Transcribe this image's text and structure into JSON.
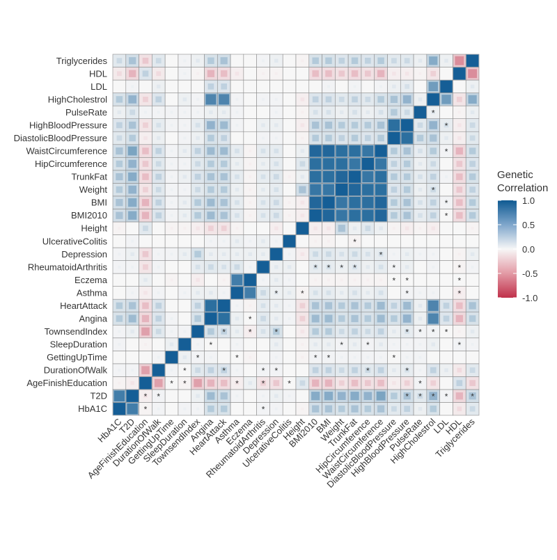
{
  "chart_data": {
    "type": "heatmap",
    "title": "",
    "xlabel": "",
    "ylabel": "",
    "variables": [
      "HbA1C",
      "T2D",
      "AgeFinishEducation",
      "DurationOfWalk",
      "GettingUpTime",
      "SleepDuration",
      "TownsendIndex",
      "Angina",
      "HeartAttack",
      "Asthma",
      "Eczema",
      "RheumatoidArthritis",
      "Depression",
      "UlcerativeColitis",
      "Height",
      "BMI2010",
      "BMI",
      "Weight",
      "TrunkFat",
      "HipCircumference",
      "WaistCircumference",
      "DiastolicBloodPressure",
      "HighBloodPressure",
      "PulseRate",
      "HighCholestrol",
      "LDL",
      "HDL",
      "Triglycerides"
    ],
    "y_order": "bottom-to-top",
    "value_range": [
      -1,
      1
    ],
    "matrix_lower_triangle": [
      [
        1
      ],
      [
        0.8,
        1
      ],
      [
        -0.05,
        -0.1,
        1
      ],
      [
        0.05,
        0.05,
        -0.45,
        1
      ],
      [
        0,
        0,
        0,
        0.05,
        1
      ],
      [
        0.05,
        0,
        -0.05,
        0,
        0.1,
        1
      ],
      [
        0.05,
        0.1,
        -0.45,
        0.2,
        0.05,
        0.05,
        1
      ],
      [
        0.3,
        0.4,
        -0.35,
        0.25,
        0.05,
        0,
        0.3,
        1
      ],
      [
        0.3,
        0.35,
        -0.3,
        0.25,
        0,
        0,
        0.25,
        0.9,
        1
      ],
      [
        0,
        0.05,
        -0.1,
        0.05,
        0,
        0.05,
        0.1,
        0.1,
        0.05,
        1
      ],
      [
        0,
        0,
        0.1,
        0,
        -0.05,
        0,
        -0.1,
        0,
        -0.05,
        0.8,
        1
      ],
      [
        0.05,
        0.05,
        -0.2,
        0.05,
        0,
        0,
        0.15,
        0.2,
        0.15,
        0.2,
        0.05,
        1
      ],
      [
        0.05,
        0.1,
        -0.25,
        0.05,
        0.05,
        0.1,
        0.3,
        0.1,
        0.1,
        0.1,
        0.1,
        0.1,
        1
      ],
      [
        0,
        0.05,
        0,
        0,
        0,
        0,
        0,
        0.05,
        0.05,
        0.1,
        0.05,
        0.1,
        0.05,
        1
      ],
      [
        -0.05,
        0,
        0.2,
        0,
        -0.05,
        -0.05,
        -0.1,
        -0.2,
        -0.2,
        -0.05,
        0,
        0,
        -0.1,
        0,
        1
      ],
      [
        0.35,
        0.5,
        -0.35,
        0.25,
        0.05,
        0.1,
        0.3,
        0.4,
        0.35,
        0.15,
        -0.05,
        0.15,
        0.2,
        -0.05,
        -0.1,
        1
      ],
      [
        0.35,
        0.5,
        -0.35,
        0.25,
        0.05,
        0.1,
        0.3,
        0.4,
        0.35,
        0.15,
        -0.05,
        0.15,
        0.2,
        -0.05,
        -0.1,
        0.95,
        1
      ],
      [
        0.3,
        0.45,
        -0.2,
        0.2,
        0.05,
        0.05,
        0.2,
        0.3,
        0.3,
        0.1,
        -0.05,
        0.1,
        0.15,
        0,
        0.35,
        0.85,
        0.85,
        1
      ],
      [
        0.35,
        0.5,
        -0.3,
        0.25,
        0.05,
        0.1,
        0.25,
        0.35,
        0.35,
        0.15,
        -0.05,
        0.15,
        0.2,
        -0.05,
        0.1,
        0.9,
        0.9,
        0.95,
        1
      ],
      [
        0.3,
        0.45,
        -0.25,
        0.2,
        0.05,
        0.05,
        0.2,
        0.3,
        0.3,
        0.1,
        -0.05,
        0.1,
        0.15,
        0,
        0.2,
        0.9,
        0.9,
        0.9,
        0.85,
        1
      ],
      [
        0.35,
        0.55,
        -0.3,
        0.25,
        0.05,
        0.1,
        0.25,
        0.4,
        0.4,
        0.15,
        -0.05,
        0.15,
        0.15,
        0,
        0.1,
        0.95,
        0.95,
        0.9,
        0.9,
        0.85,
        1
      ],
      [
        0.2,
        0.3,
        -0.1,
        0.1,
        0,
        0.05,
        0.1,
        0.3,
        0.25,
        0,
        0,
        0.05,
        0.05,
        0,
        -0.05,
        0.3,
        0.3,
        0.25,
        0.3,
        0.25,
        0.3,
        1
      ],
      [
        0.25,
        0.35,
        -0.2,
        0.15,
        0.05,
        0.05,
        0.15,
        0.45,
        0.4,
        0.05,
        0,
        0.1,
        0.1,
        0,
        -0.1,
        0.35,
        0.35,
        0.3,
        0.3,
        0.3,
        0.35,
        0.9,
        1
      ],
      [
        0.1,
        0.2,
        0.05,
        0.05,
        0.05,
        0.05,
        0.05,
        0.1,
        0.1,
        0.05,
        0,
        0,
        0.05,
        0,
        -0.05,
        0.15,
        0.15,
        0.1,
        0.15,
        0.1,
        0.15,
        0.3,
        0.2,
        1
      ],
      [
        0.3,
        0.45,
        -0.2,
        0.25,
        0,
        0.1,
        0.05,
        0.75,
        0.75,
        0.05,
        0,
        0.05,
        0.05,
        0,
        -0.1,
        0.25,
        0.25,
        0.2,
        0.25,
        0.2,
        0.3,
        0.35,
        0.45,
        0.1,
        1
      ],
      [
        0,
        0.05,
        0,
        0.1,
        0,
        0,
        0,
        0.25,
        0.25,
        0,
        0,
        0,
        0,
        0,
        0,
        0,
        0.05,
        0,
        0.05,
        0,
        0.05,
        0.1,
        0.15,
        0,
        0.6,
        1
      ],
      [
        -0.15,
        -0.35,
        0.25,
        -0.15,
        0,
        0.05,
        -0.05,
        -0.35,
        -0.3,
        -0.1,
        0,
        -0.05,
        -0.05,
        0,
        0,
        -0.3,
        -0.3,
        -0.25,
        -0.3,
        -0.25,
        -0.35,
        -0.1,
        -0.1,
        -0.05,
        -0.2,
        0,
        1
      ],
      [
        0.2,
        0.35,
        -0.25,
        0.2,
        0,
        0.05,
        0.1,
        0.3,
        0.35,
        0,
        0,
        0.05,
        0.1,
        0,
        -0.05,
        0.3,
        0.3,
        0.25,
        0.3,
        0.25,
        0.3,
        0.2,
        0.2,
        0.1,
        0.5,
        0.1,
        -0.55,
        1
      ]
    ],
    "significance_marker": "*",
    "significant_cells_row_col": [
      [
        23,
        24
      ],
      [
        22,
        25
      ],
      [
        20,
        25
      ],
      [
        17,
        24
      ],
      [
        16,
        25
      ],
      [
        15,
        25
      ],
      [
        13,
        18
      ],
      [
        12,
        20
      ],
      [
        11,
        15
      ],
      [
        11,
        16
      ],
      [
        11,
        17
      ],
      [
        11,
        18
      ],
      [
        11,
        21
      ],
      [
        11,
        26
      ],
      [
        10,
        21
      ],
      [
        10,
        22
      ],
      [
        10,
        26
      ],
      [
        9,
        12
      ],
      [
        9,
        14
      ],
      [
        9,
        22
      ],
      [
        9,
        26
      ],
      [
        7,
        10
      ],
      [
        6,
        8
      ],
      [
        6,
        10
      ],
      [
        6,
        12
      ],
      [
        6,
        22
      ],
      [
        6,
        23
      ],
      [
        6,
        24
      ],
      [
        6,
        25
      ],
      [
        5,
        7
      ],
      [
        5,
        17
      ],
      [
        5,
        19
      ],
      [
        5,
        26
      ],
      [
        4,
        6
      ],
      [
        4,
        9
      ],
      [
        4,
        15
      ],
      [
        4,
        16
      ],
      [
        4,
        21
      ],
      [
        3,
        5
      ],
      [
        3,
        8
      ],
      [
        3,
        11
      ],
      [
        3,
        12
      ],
      [
        3,
        19
      ],
      [
        3,
        22
      ],
      [
        2,
        4
      ],
      [
        2,
        5
      ],
      [
        2,
        9
      ],
      [
        2,
        11
      ],
      [
        2,
        13
      ],
      [
        2,
        23
      ],
      [
        1,
        2
      ],
      [
        1,
        3
      ],
      [
        1,
        22
      ],
      [
        1,
        23
      ],
      [
        1,
        24
      ],
      [
        1,
        25
      ],
      [
        1,
        27
      ],
      [
        0,
        2
      ],
      [
        0,
        11
      ]
    ],
    "legend": {
      "title_line1": "Genetic",
      "title_line2": "Correlation",
      "ticks": [
        "1.0",
        "0.5",
        "0.0",
        "-0.5",
        "-1.0"
      ],
      "tick_values": [
        1,
        0.5,
        0,
        -0.5,
        -1
      ],
      "placement": "right"
    },
    "colors": {
      "positive": "#0f5a92",
      "neutral": "#f7f7f7",
      "negative": "#c0304a",
      "grid": "#8a8a8a"
    }
  }
}
